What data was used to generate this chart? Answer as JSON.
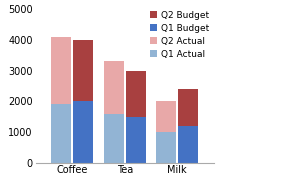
{
  "categories": [
    "Coffee",
    "Tea",
    "Milk"
  ],
  "series": {
    "Q1 Actual": [
      1900,
      1600,
      1000
    ],
    "Q2 Actual": [
      2200,
      1700,
      1000
    ],
    "Q1 Budget": [
      2000,
      1500,
      1200
    ],
    "Q2 Budget": [
      2000,
      1500,
      1200
    ]
  },
  "colors": {
    "Q1 Actual": "#92b4d4",
    "Q2 Actual": "#e8a8a8",
    "Q1 Budget": "#4472c4",
    "Q2 Budget": "#a84040"
  },
  "legend_order": [
    "Q2 Budget",
    "Q1 Budget",
    "Q2 Actual",
    "Q1 Actual"
  ],
  "ylim": [
    0,
    5000
  ],
  "yticks": [
    0,
    1000,
    2000,
    3000,
    4000,
    5000
  ],
  "bar_width": 0.38,
  "bar_gap": 0.04,
  "figsize": [
    2.97,
    1.87
  ],
  "dpi": 100
}
